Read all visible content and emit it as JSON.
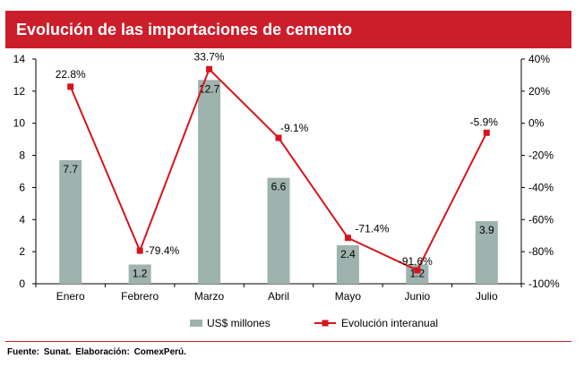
{
  "title": "Evolución de las importaciones de cemento",
  "source": "Fuente: Sunat. Elaboración: ComexPerú.",
  "colors": {
    "bar": "#9fb3ae",
    "line": "#d7141c",
    "title_bg": "#cc1d2a"
  },
  "chart_data": {
    "type": "bar",
    "categories": [
      "Enero",
      "Febrero",
      "Marzo",
      "Abril",
      "Mayo",
      "Junio",
      "Julio"
    ],
    "series": [
      {
        "name": "US$ millones",
        "type": "bar",
        "axis": "left",
        "values": [
          7.7,
          1.2,
          12.7,
          6.6,
          2.4,
          1.2,
          3.9
        ],
        "labels": [
          "7.7",
          "1.2",
          "12.7",
          "6.6",
          "2.4",
          "1.2",
          "3.9"
        ]
      },
      {
        "name": "Evolución interanual",
        "type": "line",
        "axis": "right",
        "values": [
          22.8,
          -79.4,
          33.7,
          -9.1,
          -71.4,
          -91.6,
          -5.9
        ],
        "labels": [
          "22.8%",
          "-79.4%",
          "33.7%",
          "-9.1%",
          "-71.4%",
          "-91.6%",
          "-5.9%"
        ]
      }
    ],
    "y_left": {
      "min": 0,
      "max": 14,
      "ticks": [
        "0",
        "2",
        "4",
        "6",
        "8",
        "10",
        "12",
        "14"
      ]
    },
    "y_right": {
      "min": -100,
      "max": 40,
      "ticks": [
        "-100%",
        "-80%",
        "-60%",
        "-40%",
        "-20%",
        "0%",
        "20%",
        "40%"
      ]
    },
    "legend_position": "bottom",
    "grid": false
  }
}
